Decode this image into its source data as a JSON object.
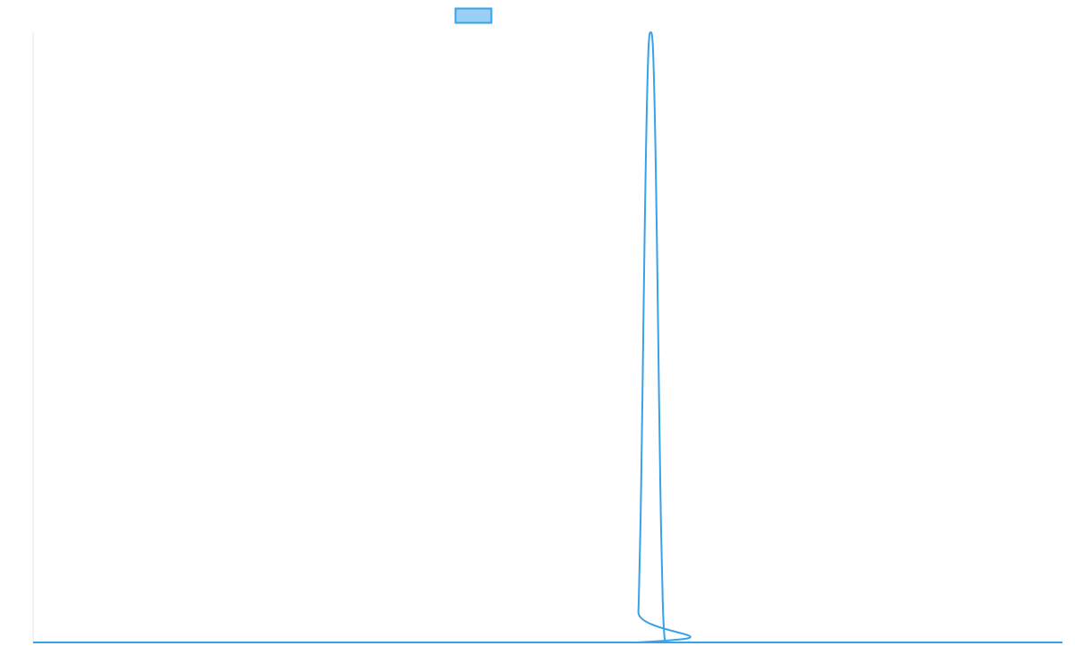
{
  "chart_data": {
    "type": "line",
    "title": "",
    "xlabel": "",
    "ylabel": "",
    "grid": false,
    "legend": "top-center",
    "x": [
      0,
      586,
      588,
      590,
      592,
      594,
      596,
      598,
      600,
      602,
      604,
      606,
      608,
      610,
      612,
      614,
      616,
      618,
      620,
      1000
    ],
    "xlim": [
      0,
      1000
    ],
    "ylim": [
      0,
      1
    ],
    "series": [
      {
        "name": "",
        "color": "#36a2eb",
        "fill": "rgba(54,162,235,0.5)",
        "values": [
          0,
          0,
          0.05,
          0.19,
          0.41,
          0.66,
          0.86,
          0.98,
          1.0,
          0.98,
          0.86,
          0.66,
          0.41,
          0.19,
          0.05,
          0.0,
          0,
          0,
          0,
          0
        ]
      }
    ]
  }
}
